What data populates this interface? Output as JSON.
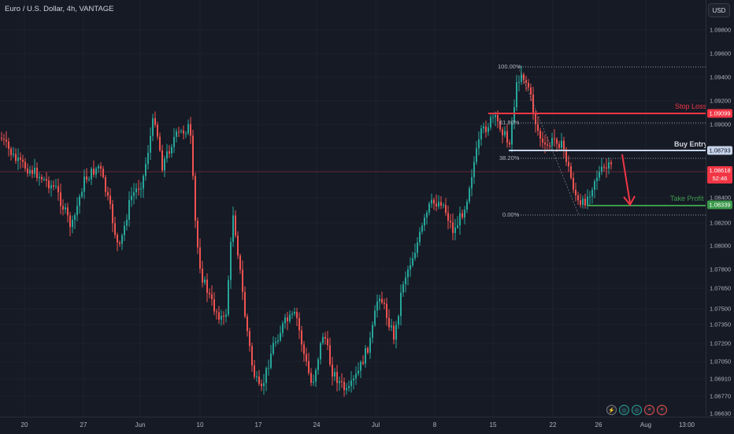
{
  "header": {
    "title": "Euro / U.S. Dollar, 4h, VANTAGE",
    "currency_button": "USD"
  },
  "price_axis": {
    "ticks": [
      "1.09800",
      "1.09600",
      "1.09400",
      "1.09200",
      "1.09000",
      "1.08800",
      "1.08600",
      "1.08400",
      "1.08200",
      "1.08000",
      "1.07800",
      "1.07650",
      "1.07500",
      "1.07350",
      "1.07200",
      "1.07050",
      "1.06910",
      "1.06770",
      "1.06630"
    ]
  },
  "price_labels": {
    "stop_loss": {
      "value": "1.09099",
      "color": "#f23645"
    },
    "buy_entry": {
      "value": "1.08793",
      "color": "#b2c7e0"
    },
    "current": {
      "value": "1.08618",
      "timer": "52:46",
      "color": "#f23645"
    },
    "take_profit": {
      "value": "1.08339",
      "color": "#26a848"
    }
  },
  "chart_labels": {
    "stop_loss": "Stop Loss",
    "buy_entry": "Buy Entry",
    "take_profit": "Take Profit"
  },
  "fib_labels": {
    "level_100": "100.00%",
    "level_618": "61.80%",
    "level_382": "38.20%",
    "level_0": "0.00%"
  },
  "time_axis": {
    "ticks": [
      "20",
      "27",
      "Jun",
      "10",
      "17",
      "24",
      "Jul",
      "8",
      "15",
      "22",
      "26",
      "Aug",
      "13:00"
    ]
  },
  "toolbar": {
    "icons": [
      "lightning-icon",
      "indicator-icon",
      "indicator-icon",
      "flag-eu-icon",
      "flag-us-icon"
    ]
  },
  "colors": {
    "up": "#26a69a",
    "down": "#ef5350",
    "stop": "#f23645",
    "entry": "#c5d3e8",
    "profit": "#3c9a4c"
  }
}
